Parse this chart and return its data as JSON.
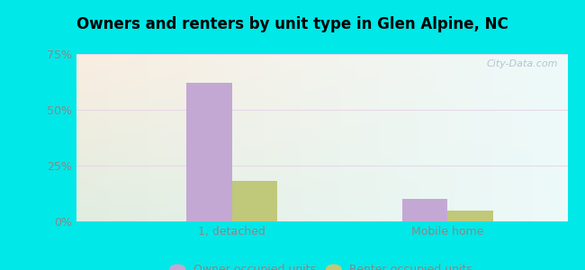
{
  "title": "Owners and renters by unit type in Glen Alpine, NC",
  "categories": [
    "1, detached",
    "Mobile home"
  ],
  "owner_values": [
    62,
    10
  ],
  "renter_values": [
    18,
    5
  ],
  "owner_color": "#c4a8d4",
  "renter_color": "#c0c87a",
  "ylim": [
    0,
    75
  ],
  "yticks": [
    0,
    25,
    50,
    75
  ],
  "ytick_labels": [
    "0%",
    "25%",
    "50%",
    "75%"
  ],
  "background_color": "#00e8e8",
  "bar_width": 0.38,
  "group_positions": [
    1.0,
    2.8
  ],
  "watermark": "City-Data.com",
  "legend_owner": "Owner occupied units",
  "legend_renter": "Renter occupied units",
  "tick_color": "#888888",
  "grid_color": "#dddddd"
}
